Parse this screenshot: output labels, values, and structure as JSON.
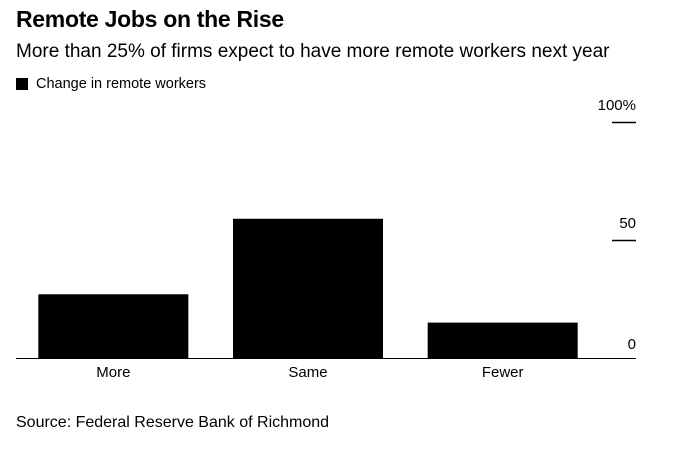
{
  "title": "Remote Jobs on the Rise",
  "subtitle": "More than 25% of firms expect to have more remote workers next year",
  "source": "Source: Federal Reserve Bank of Richmond",
  "colors": {
    "bar": "#000000",
    "legend_swatch": "#000000",
    "axis": "#000000"
  },
  "chart_data": {
    "type": "bar",
    "categories": [
      "More",
      "Same",
      "Fewer"
    ],
    "series": [
      {
        "name": "Change in remote workers",
        "values": [
          27,
          59,
          15
        ]
      }
    ],
    "ylim": [
      0,
      100
    ],
    "yticks": [
      {
        "value": 100,
        "label": "100%"
      },
      {
        "value": 50,
        "label": "50"
      },
      {
        "value": 0,
        "label": "0"
      }
    ],
    "xlabel": "",
    "ylabel": "",
    "legend": "top-left",
    "grid": false
  }
}
